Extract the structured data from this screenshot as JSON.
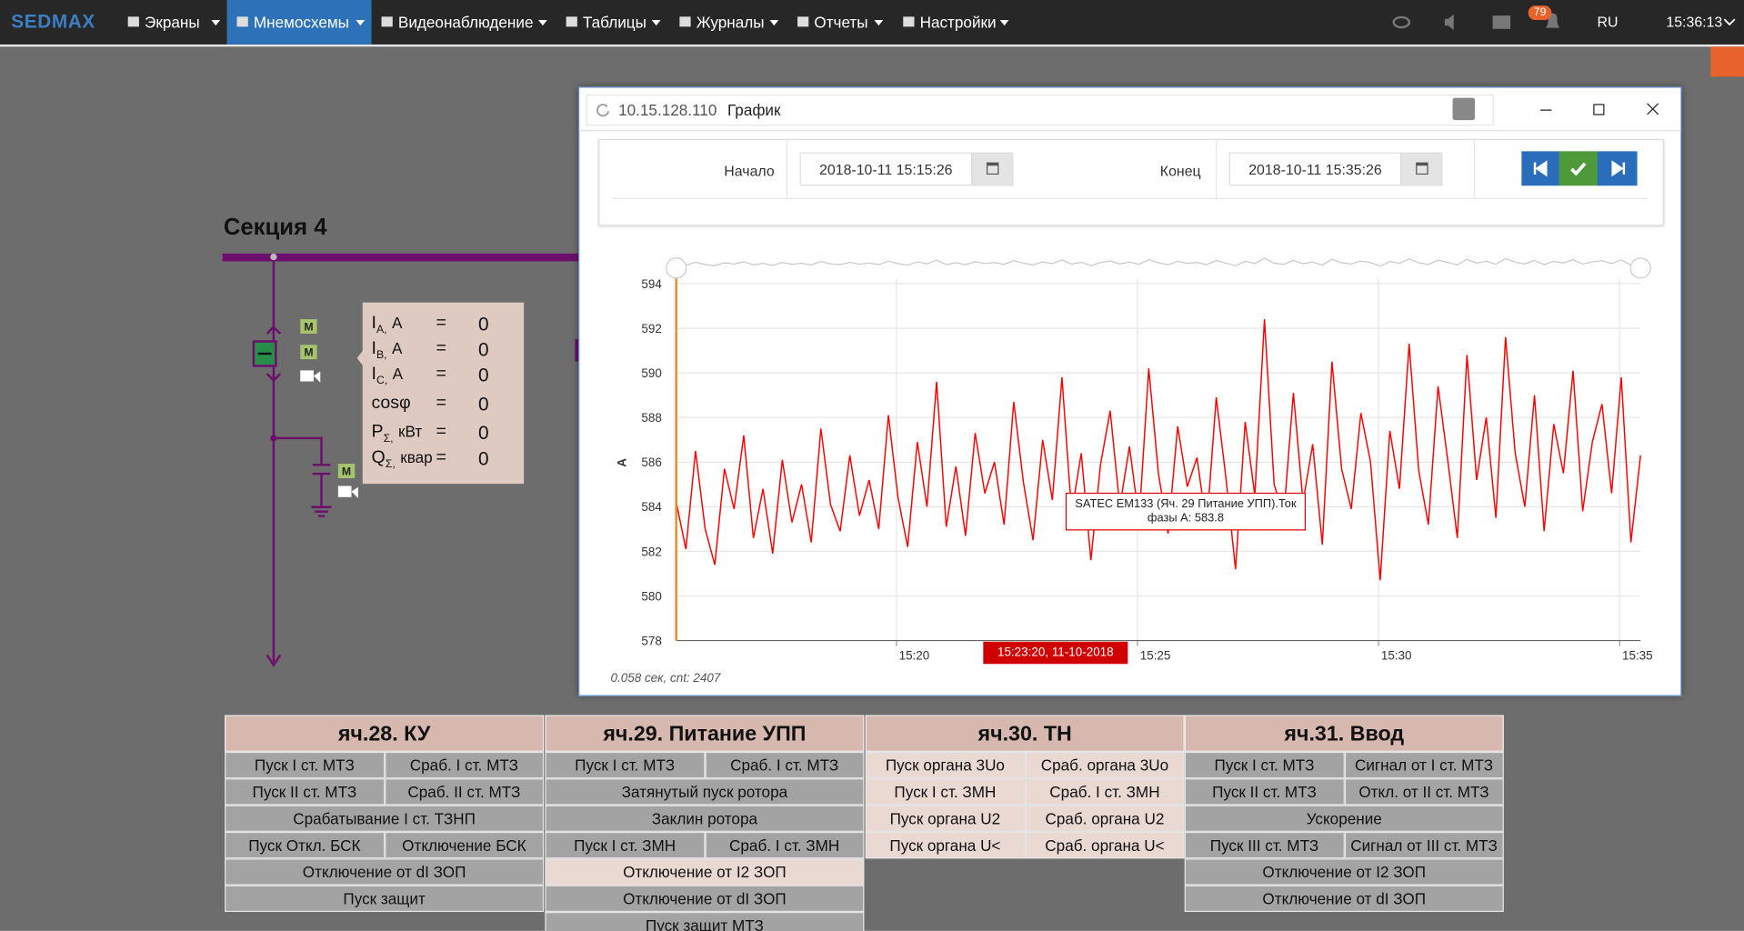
{
  "navbar": {
    "brand": "SEDMAX",
    "menu": [
      "Экраны",
      "Мнемосхемы",
      "Видеонаблюдение",
      "Таблицы",
      "Журналы",
      "Отчеты",
      "Настройки"
    ],
    "active": 1,
    "badge": "79",
    "lang": "RU",
    "time": "15:36:13"
  },
  "diagram": {
    "title": "Секция 4",
    "m_label": "M",
    "readings": [
      {
        "label": "I",
        "sub": "A,",
        "unit": "A",
        "eq": "=",
        "value": "0"
      },
      {
        "label": "I",
        "sub": "B,",
        "unit": "A",
        "eq": "=",
        "value": "0"
      },
      {
        "label": "I",
        "sub": "C,",
        "unit": "A",
        "eq": "=",
        "value": "0"
      },
      {
        "label": "cosφ",
        "eq": "=",
        "value": "0"
      },
      {
        "label": "P",
        "sub": "Σ,",
        "unit": "кВт",
        "eq": "=",
        "value": "0"
      },
      {
        "label": "Q",
        "sub": "Σ,",
        "unit": "квар",
        "eq": "=",
        "value": "0"
      }
    ]
  },
  "window": {
    "address": "10.15.128.110",
    "title": "График",
    "start_label": "Начало",
    "start": "2018-10-11 15:15:26",
    "end_label": "Конец",
    "end": "2018-10-11 15:35:26",
    "footer": "0.058 сек, cnt: 2407"
  },
  "chart_data": {
    "type": "line",
    "y_label": "A",
    "tooltip": "SATEC EM133 (Яч. 29 Питание УПП).Ток фазы A: 583.8",
    "crosshair_label": "15:23:20, 11-10-2018",
    "x": [
      "15:15:26",
      "15:15:38",
      "15:15:50",
      "15:16:02",
      "15:16:14",
      "15:16:26",
      "15:16:38",
      "15:16:50",
      "15:17:02",
      "15:17:14",
      "15:17:26",
      "15:17:38",
      "15:17:50",
      "15:18:02",
      "15:18:14",
      "15:18:26",
      "15:18:38",
      "15:18:50",
      "15:19:02",
      "15:19:14",
      "15:19:26",
      "15:19:38",
      "15:19:50",
      "15:20:02",
      "15:20:14",
      "15:20:26",
      "15:20:38",
      "15:20:50",
      "15:21:02",
      "15:21:14",
      "15:21:26",
      "15:21:38",
      "15:21:50",
      "15:22:02",
      "15:22:14",
      "15:22:26",
      "15:22:38",
      "15:22:50",
      "15:23:02",
      "15:23:14",
      "15:23:26",
      "15:23:38",
      "15:23:50",
      "15:24:02",
      "15:24:14",
      "15:24:26",
      "15:24:38",
      "15:24:50",
      "15:25:02",
      "15:25:14",
      "15:25:26",
      "15:25:38",
      "15:25:50",
      "15:26:02",
      "15:26:14",
      "15:26:26",
      "15:26:38",
      "15:26:50",
      "15:27:02",
      "15:27:14",
      "15:27:26",
      "15:27:38",
      "15:27:50",
      "15:28:02",
      "15:28:14",
      "15:28:26",
      "15:28:38",
      "15:28:50",
      "15:29:02",
      "15:29:14",
      "15:29:26",
      "15:29:38",
      "15:29:50",
      "15:30:02",
      "15:30:14",
      "15:30:26",
      "15:30:38",
      "15:30:50",
      "15:31:02",
      "15:31:14",
      "15:31:26",
      "15:31:38",
      "15:31:50",
      "15:32:02",
      "15:32:14",
      "15:32:26",
      "15:32:38",
      "15:32:50",
      "15:33:02",
      "15:33:14",
      "15:33:26",
      "15:33:38",
      "15:33:50",
      "15:34:02",
      "15:34:14",
      "15:34:26",
      "15:34:38",
      "15:34:50",
      "15:35:02",
      "15:35:14",
      "15:35:26"
    ],
    "series": [
      {
        "name": "SATEC EM133 (Яч. 29 Питание УПП).Ток фазы A",
        "color": "#ff0000",
        "values": [
          584.2,
          582.1,
          586.5,
          583.0,
          581.4,
          585.7,
          583.9,
          587.2,
          582.6,
          584.8,
          581.9,
          586.1,
          583.3,
          585.0,
          582.4,
          587.5,
          584.1,
          582.9,
          586.3,
          583.6,
          585.2,
          583.0,
          588.1,
          584.4,
          582.2,
          586.9,
          584.0,
          589.6,
          583.1,
          585.8,
          582.7,
          587.3,
          584.6,
          586.0,
          583.2,
          588.7,
          585.1,
          582.5,
          587.0,
          584.3,
          589.8,
          583.7,
          586.4,
          581.6,
          585.9,
          588.3,
          584.0,
          586.7,
          583.4,
          590.2,
          585.5,
          582.8,
          587.6,
          584.9,
          586.2,
          583.1,
          588.9,
          585.3,
          581.2,
          587.8,
          584.5,
          592.4,
          585.0,
          583.6,
          589.1,
          584.2,
          586.8,
          582.3,
          590.5,
          585.7,
          583.9,
          588.2,
          586.0,
          580.7,
          587.4,
          584.8,
          591.3,
          585.6,
          583.2,
          589.4,
          586.1,
          582.6,
          590.8,
          585.2,
          588.0,
          583.5,
          591.6,
          586.4,
          584.0,
          589.0,
          582.9,
          587.7,
          585.5,
          590.1,
          583.8,
          586.9,
          588.6,
          584.6,
          589.8,
          582.4,
          586.3
        ]
      }
    ],
    "xlim": [
      "15:15:26",
      "15:35:26"
    ],
    "xticks": [
      "15:20",
      "15:25",
      "15:30",
      "15:35"
    ],
    "ylim": [
      578,
      594.2
    ],
    "yticks": [
      578,
      580,
      582,
      584,
      586,
      588,
      590,
      592,
      594
    ],
    "grid": true
  },
  "table": {
    "columns": [
      {
        "header": "яч.28. КУ",
        "rows": [
          [
            {
              "text": "Пуск I ст. МТЗ",
              "color": "#a3a3a3"
            },
            {
              "text": "Сраб. I ст. МТЗ",
              "color": "#a3a3a3"
            }
          ],
          [
            {
              "text": "Пуск II ст. МТЗ",
              "color": "#a3a3a3"
            },
            {
              "text": "Сраб. II ст. МТЗ",
              "color": "#a3a3a3"
            }
          ],
          [
            {
              "text": "Срабатывание I ст. ТЗНП",
              "color": "#a3a3a3"
            }
          ],
          [
            {
              "text": "Пуск Откл. БСК",
              "color": "#a3a3a3"
            },
            {
              "text": "Отключение БСК",
              "color": "#a3a3a3"
            }
          ],
          [
            {
              "text": "Отключение от dI ЗОП",
              "color": "#a3a3a3"
            }
          ],
          [
            {
              "text": "Пуск защит",
              "color": "#a3a3a3"
            }
          ]
        ]
      },
      {
        "header": "яч.29. Питание УПП",
        "rows": [
          [
            {
              "text": "Пуск I ст. МТЗ",
              "color": "#a3a3a3"
            },
            {
              "text": "Сраб. I ст. МТЗ",
              "color": "#a3a3a3"
            }
          ],
          [
            {
              "text": "Затянутый пуск ротора",
              "color": "#a3a3a3"
            }
          ],
          [
            {
              "text": "Заклин ротора",
              "color": "#a3a3a3"
            }
          ],
          [
            {
              "text": "Пуск I ст. ЗМН",
              "color": "#a3a3a3"
            },
            {
              "text": "Сраб. I ст. ЗМН",
              "color": "#a3a3a3"
            }
          ],
          [
            {
              "text": "Отключение от I2 ЗОП",
              "color": "#ead8d2"
            }
          ],
          [
            {
              "text": "Отключение от dI ЗОП",
              "color": "#a3a3a3"
            }
          ],
          [
            {
              "text": "Пуск защит МТЗ",
              "color": "#a3a3a3"
            }
          ]
        ]
      },
      {
        "header": "яч.30. ТН",
        "rows": [
          [
            {
              "text": "Пуск органа 3Uo",
              "color": "#ead8d2"
            },
            {
              "text": "Сраб. органа 3Uo",
              "color": "#ead8d2"
            }
          ],
          [
            {
              "text": "Пуск I ст. ЗМН",
              "color": "#ead8d2"
            },
            {
              "text": "Сраб. I ст. ЗМН",
              "color": "#ead8d2"
            }
          ],
          [
            {
              "text": "Пуск органа U2",
              "color": "#ead8d2"
            },
            {
              "text": "Сраб. органа U2",
              "color": "#ead8d2"
            }
          ],
          [
            {
              "text": "Пуск органа U<",
              "color": "#ead8d2"
            },
            {
              "text": "Сраб. органа U<",
              "color": "#ead8d2"
            }
          ]
        ]
      },
      {
        "header": "яч.31. Ввод",
        "rows": [
          [
            {
              "text": "Пуск I ст. МТЗ",
              "color": "#a3a3a3"
            },
            {
              "text": "Сигнал от I ст. МТЗ",
              "color": "#a3a3a3"
            }
          ],
          [
            {
              "text": "Пуск II ст. МТЗ",
              "color": "#a3a3a3"
            },
            {
              "text": "Откл. от II ст. МТЗ",
              "color": "#a3a3a3"
            }
          ],
          [
            {
              "text": "Ускорение",
              "color": "#a3a3a3"
            }
          ],
          [
            {
              "text": "Пуск III ст. МТЗ",
              "color": "#a3a3a3"
            },
            {
              "text": "Сигнал от III ст. МТЗ",
              "color": "#a3a3a3"
            }
          ],
          [
            {
              "text": "Отключение от I2 ЗОП",
              "color": "#a3a3a3"
            }
          ],
          [
            {
              "text": "Отключение от dI ЗОП",
              "color": "#a3a3a3"
            }
          ]
        ]
      }
    ]
  }
}
